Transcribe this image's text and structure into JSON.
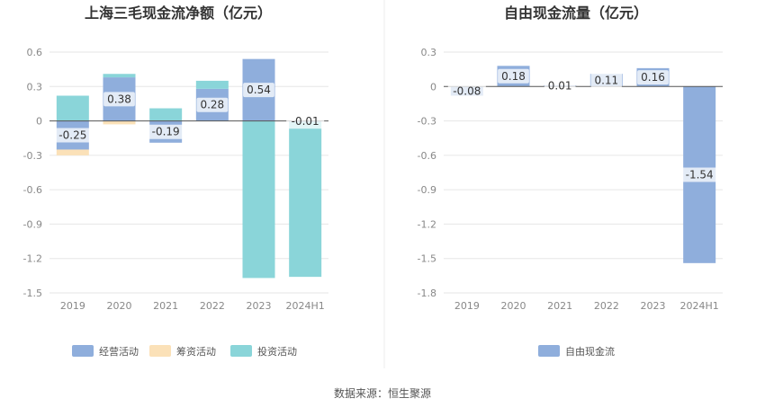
{
  "source_note": "数据来源：恒生聚源",
  "colors": {
    "operating": "#8faedc",
    "financing": "#fbe1b8",
    "investing": "#8ad5d9",
    "free_cash_flow": "#8faedc",
    "grid": "#e6e6e6",
    "axis_text": "#888888",
    "title_text": "#333333",
    "zero_line": "#555555"
  },
  "chart_data": [
    {
      "type": "bar",
      "stacked": true,
      "title": "上海三毛现金流净额（亿元）",
      "categories": [
        "2019",
        "2020",
        "2021",
        "2022",
        "2023",
        "2024H1"
      ],
      "ylim": [
        -1.5,
        0.6
      ],
      "yticks": [
        0.6,
        0.3,
        0,
        -0.3,
        -0.6,
        -0.9,
        -1.2,
        -1.5
      ],
      "ytick_labels": [
        "0.6",
        "0.3",
        "0",
        "-0.3",
        "-0.6",
        "-0.9",
        "-1.2",
        "-1.5"
      ],
      "grid": true,
      "legend_position": "bottom",
      "series": [
        {
          "name": "经营活动",
          "key": "operating",
          "values": [
            -0.25,
            0.38,
            -0.19,
            0.28,
            0.54,
            -0.01
          ],
          "labels": [
            "-0.25",
            "0.38",
            "-0.19",
            "0.28",
            "0.54",
            "-0.01"
          ]
        },
        {
          "name": "筹资活动",
          "key": "financing",
          "values": [
            -0.05,
            -0.03,
            0,
            0,
            0,
            0
          ]
        },
        {
          "name": "投资活动",
          "key": "investing",
          "values": [
            0.22,
            0.03,
            0.11,
            0.07,
            -1.37,
            -1.35
          ]
        }
      ]
    },
    {
      "type": "bar",
      "stacked": false,
      "title": "自由现金流量（亿元）",
      "categories": [
        "2019",
        "2020",
        "2021",
        "2022",
        "2023",
        "2024H1"
      ],
      "ylim": [
        -1.8,
        0.3
      ],
      "yticks": [
        0.3,
        0,
        -0.3,
        -0.6,
        -0.9,
        -1.2,
        -1.5,
        -1.8
      ],
      "ytick_labels": [
        "0.3",
        "0",
        "-0.3",
        "-0.6",
        "-0.9",
        "-1.2",
        "-1.5",
        "-1.8"
      ],
      "grid": true,
      "legend_position": "bottom",
      "series": [
        {
          "name": "自由现金流",
          "key": "free_cash_flow",
          "values": [
            -0.08,
            0.18,
            0.01,
            0.11,
            0.16,
            -1.54
          ],
          "labels": [
            "-0.08",
            "0.18",
            "0.01",
            "0.11",
            "0.16",
            "-1.54"
          ]
        }
      ]
    }
  ]
}
